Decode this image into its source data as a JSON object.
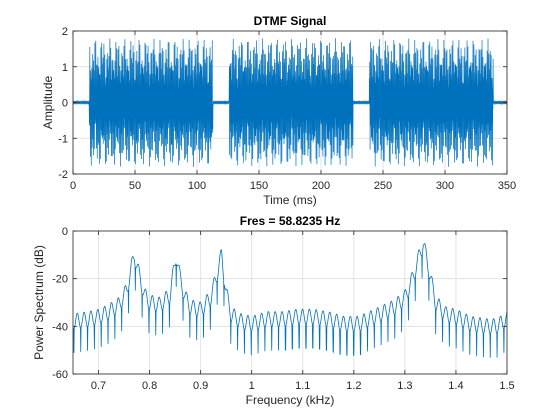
{
  "chart_data": [
    {
      "type": "line",
      "title": "DTMF Signal",
      "xlabel": "Time (ms)",
      "ylabel": "Amplitude",
      "xlim": [
        0,
        350
      ],
      "ylim": [
        -2,
        2
      ],
      "xticks": [
        0,
        50,
        100,
        150,
        200,
        250,
        300,
        350
      ],
      "yticks": [
        -2,
        -1,
        0,
        1,
        2
      ],
      "grid": true,
      "color": "#0072BD",
      "series": [
        {
          "bursts_ms": [
            [
              13,
              113
            ],
            [
              126,
              226
            ],
            [
              239,
              339
            ]
          ],
          "burst_envelope_amplitude": 1.8,
          "silence_noise_amplitude": 0.06
        }
      ]
    },
    {
      "type": "line",
      "title": "Fres = 58.8235 Hz",
      "xlabel": "Frequency (kHz)",
      "ylabel": "Power Spectrum (dB)",
      "xlim": [
        0.65,
        1.5
      ],
      "ylim": [
        -60,
        0
      ],
      "xticks": [
        0.7,
        0.8,
        0.9,
        1,
        1.1,
        1.2,
        1.3,
        1.4,
        1.5
      ],
      "xtick_labels": [
        "0.7",
        "0.8",
        "0.9",
        "1",
        "1.1",
        "1.2",
        "1.3",
        "1.4",
        "1.5"
      ],
      "yticks": [
        -60,
        -40,
        -20,
        0
      ],
      "grid": true,
      "color": "#0072BD",
      "series": [
        {
          "x": [
            0.65,
            0.68,
            0.7,
            0.72,
            0.74,
            0.755,
            0.762,
            0.77,
            0.778,
            0.79,
            0.8,
            0.82,
            0.84,
            0.852,
            0.86,
            0.87,
            0.88,
            0.9,
            0.92,
            0.932,
            0.941,
            0.95,
            0.96,
            0.98,
            1.0,
            1.03,
            1.06,
            1.09,
            1.12,
            1.15,
            1.18,
            1.21,
            1.24,
            1.26,
            1.28,
            1.3,
            1.315,
            1.326,
            1.336,
            1.346,
            1.36,
            1.38,
            1.4,
            1.43,
            1.46,
            1.48,
            1.5
          ],
          "y": [
            -38,
            -37,
            -36,
            -34,
            -31,
            -25,
            -18,
            -10,
            -17,
            -27,
            -30,
            -31,
            -27,
            -10,
            -20,
            -28,
            -32,
            -33,
            -28,
            -18,
            -10,
            -26,
            -35,
            -38,
            -39,
            -37,
            -37,
            -36,
            -36,
            -37,
            -39,
            -39,
            -36,
            -34,
            -32,
            -28,
            -20,
            -12,
            -5,
            -15,
            -30,
            -35,
            -36,
            -39,
            -40,
            -40,
            -37
          ]
        }
      ]
    }
  ]
}
